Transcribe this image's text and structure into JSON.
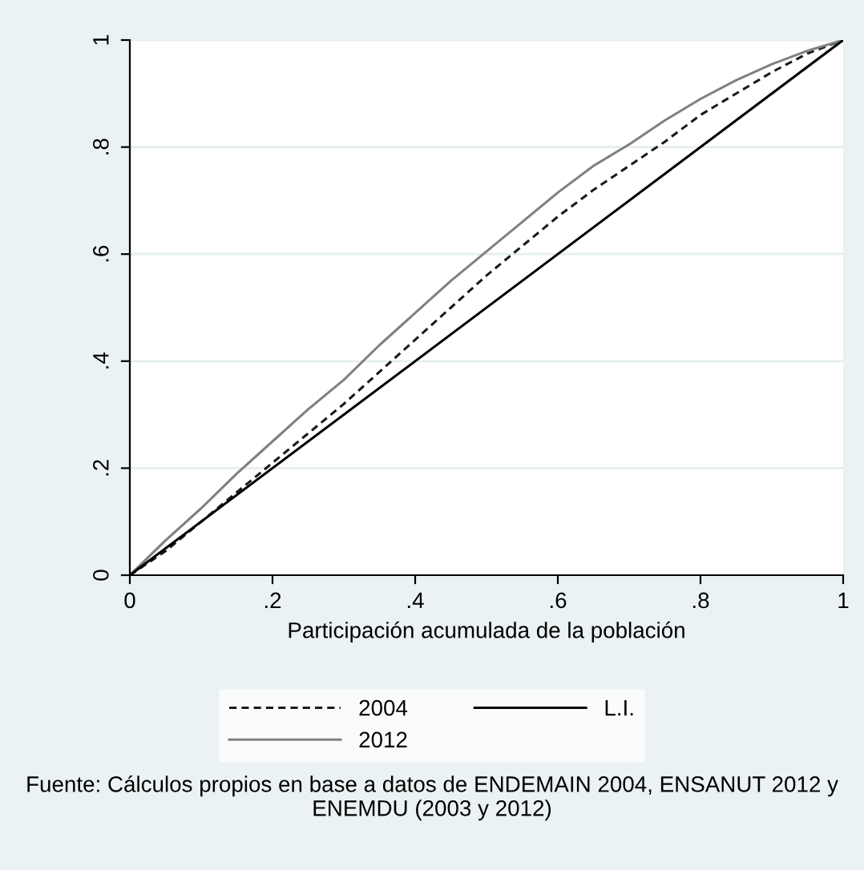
{
  "chart_data": {
    "type": "line",
    "xlabel": "Participación acumulada de la población",
    "x": [
      0,
      0.05,
      0.1,
      0.15,
      0.2,
      0.25,
      0.3,
      0.35,
      0.4,
      0.45,
      0.5,
      0.55,
      0.6,
      0.65,
      0.7,
      0.75,
      0.8,
      0.85,
      0.9,
      0.95,
      1
    ],
    "series": [
      {
        "name": "2004",
        "color": "#1a1a1a",
        "line_style": "dashed",
        "values": [
          0,
          0.045,
          0.1,
          0.155,
          0.21,
          0.265,
          0.32,
          0.38,
          0.44,
          0.5,
          0.56,
          0.615,
          0.67,
          0.72,
          0.765,
          0.81,
          0.86,
          0.9,
          0.94,
          0.975,
          1
        ]
      },
      {
        "name": "2012",
        "color": "#808080",
        "line_style": "solid",
        "values": [
          0,
          0.065,
          0.125,
          0.19,
          0.25,
          0.31,
          0.365,
          0.43,
          0.49,
          0.55,
          0.605,
          0.66,
          0.715,
          0.765,
          0.805,
          0.85,
          0.89,
          0.925,
          0.955,
          0.98,
          1
        ]
      },
      {
        "name": "L.I.",
        "color": "#000000",
        "line_style": "solid",
        "x": [
          0,
          1
        ],
        "values": [
          0,
          1
        ]
      }
    ],
    "xlim": [
      0,
      1
    ],
    "ylim": [
      0,
      1
    ],
    "xticks": [
      0,
      {
        "value": 0.2,
        "label": ".2"
      },
      {
        "value": 0.4,
        "label": ".4"
      },
      {
        "value": 0.6,
        "label": ".6"
      },
      {
        "value": 0.8,
        "label": ".8"
      },
      1
    ],
    "yticks": [
      0,
      {
        "value": 0.2,
        "label": ".2"
      },
      {
        "value": 0.4,
        "label": ".4"
      },
      {
        "value": 0.6,
        "label": ".6"
      },
      {
        "value": 0.8,
        "label": ".8"
      },
      1
    ],
    "grid": "y",
    "legend": "bottom",
    "annotations": [
      "Fuente: Cálculos propios en base a datos de ENDEMAIN 2004, ENSANUT 2012 y ENEMDU (2003 y 2012)"
    ]
  }
}
